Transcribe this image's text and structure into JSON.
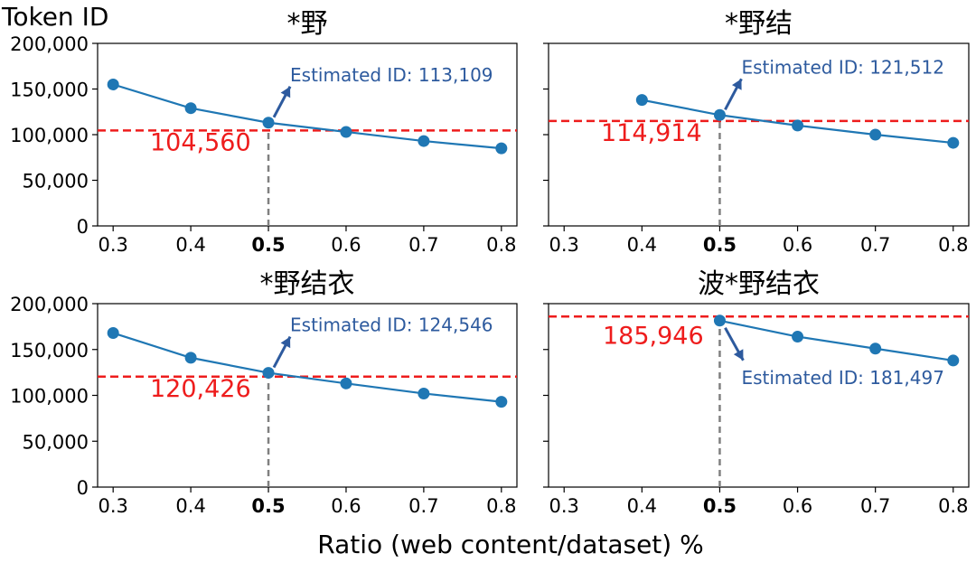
{
  "chart_data": {
    "type": "line",
    "ylabel": "Token ID",
    "xlabel": "Ratio (web content/dataset) %",
    "ylim": [
      0,
      200000
    ],
    "xlim": [
      0.28,
      0.82
    ],
    "x_ticks": [
      "0.3",
      "0.4",
      "0.5",
      "0.6",
      "0.7",
      "0.8"
    ],
    "bold_x_tick": "0.5",
    "y_ticks": [
      "0",
      "50,000",
      "100,000",
      "150,000",
      "200,000"
    ],
    "grid": false,
    "colors": {
      "line": "#1f77b4",
      "threshold": "#ee1c1c",
      "marker_line": "#808080",
      "annotation": "#2d5a9e"
    },
    "panels": [
      {
        "title": "*野",
        "x": [
          0.3,
          0.4,
          0.5,
          0.6,
          0.7,
          0.8
        ],
        "values": [
          155000,
          129000,
          113109,
          103000,
          93000,
          85000
        ],
        "threshold": 104560,
        "threshold_label": "104,560",
        "estimate_x": 0.5,
        "estimate_value": 113109,
        "annotation": "Estimated ID: 113,109"
      },
      {
        "title": "*野结",
        "x": [
          0.4,
          0.5,
          0.6,
          0.7,
          0.8
        ],
        "values": [
          138000,
          121512,
          110000,
          100000,
          91000
        ],
        "threshold": 114914,
        "threshold_label": "114,914",
        "estimate_x": 0.5,
        "estimate_value": 121512,
        "annotation": "Estimated ID: 121,512"
      },
      {
        "title": "*野结衣",
        "x": [
          0.3,
          0.4,
          0.5,
          0.6,
          0.7,
          0.8
        ],
        "values": [
          168000,
          141000,
          124546,
          113000,
          102000,
          93000
        ],
        "threshold": 120426,
        "threshold_label": "120,426",
        "estimate_x": 0.5,
        "estimate_value": 124546,
        "annotation": "Estimated ID: 124,546"
      },
      {
        "title": "波*野结衣",
        "x": [
          0.5,
          0.6,
          0.7,
          0.8
        ],
        "values": [
          181497,
          164000,
          151000,
          138000
        ],
        "threshold": 185946,
        "threshold_label": "185,946",
        "estimate_x": 0.5,
        "estimate_value": 181497,
        "annotation": "Estimated ID: 181,497"
      }
    ]
  }
}
